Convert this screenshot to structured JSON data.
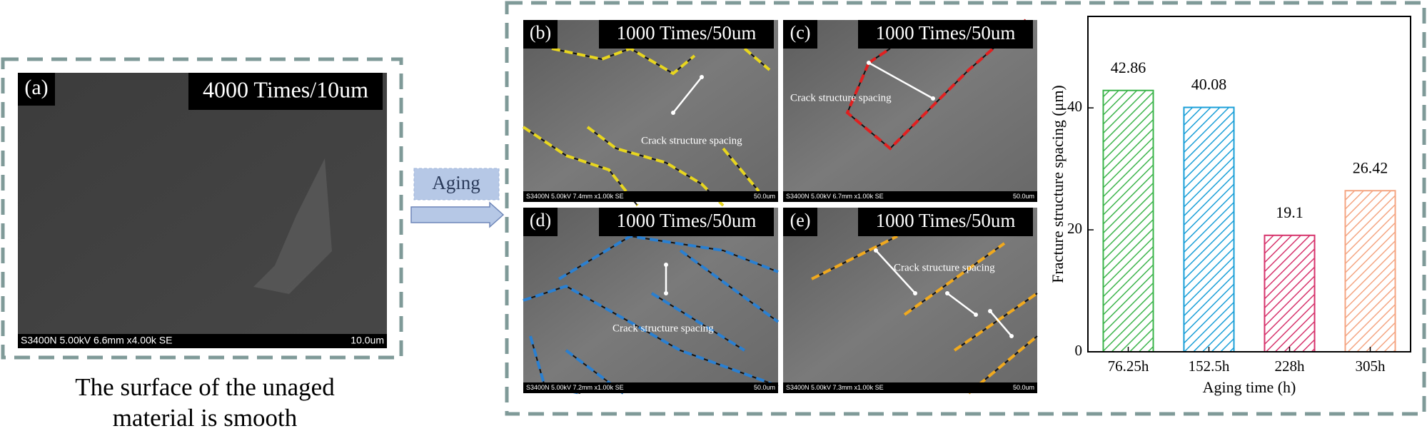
{
  "panels": [
    {
      "label": "(a)",
      "scale": "4000 Times/10um",
      "footer": "S3400N 5.00kV 6.6mm x4.00k SE",
      "scalebar": "10.0um"
    },
    {
      "label": "(b)",
      "scale": "1000 Times/50um",
      "footer": "S3400N 5.00kV 7.4mm x1.00k SE",
      "scalebar": "50.0um",
      "annotation": "Crack structure spacing"
    },
    {
      "label": "(c)",
      "scale": "1000 Times/50um",
      "footer": "S3400N 5.00kV 6.7mm x1.00k SE",
      "scalebar": "50.0um",
      "annotation": "Crack structure spacing"
    },
    {
      "label": "(d)",
      "scale": "1000 Times/50um",
      "footer": "S3400N 5.00kV 7.2mm x1.00k SE",
      "scalebar": "50.0um",
      "annotation": "Crack structure spacing"
    },
    {
      "label": "(e)",
      "scale": "1000 Times/50um",
      "footer": "S3400N 5.00kV 7.3mm x1.00k SE",
      "scalebar": "50.0um",
      "annotation": "Crack structure spacing"
    }
  ],
  "caption": [
    "The surface of the unaged",
    "material is smooth"
  ],
  "arrow_label": "Aging",
  "chart_data": {
    "type": "bar",
    "xlabel": "Aging time (h)",
    "ylabel": "Fracture structure spacing (μm)",
    "categories": [
      "76.25h",
      "152.5h",
      "228h",
      "305h"
    ],
    "values": [
      42.86,
      40.08,
      19.1,
      26.42
    ],
    "colors": [
      "#3cb44b",
      "#1a9fd8",
      "#d6336c",
      "#f4a582"
    ],
    "hatch": true,
    "ylim": [
      0,
      55
    ],
    "yticks": [
      0,
      20,
      40
    ]
  }
}
